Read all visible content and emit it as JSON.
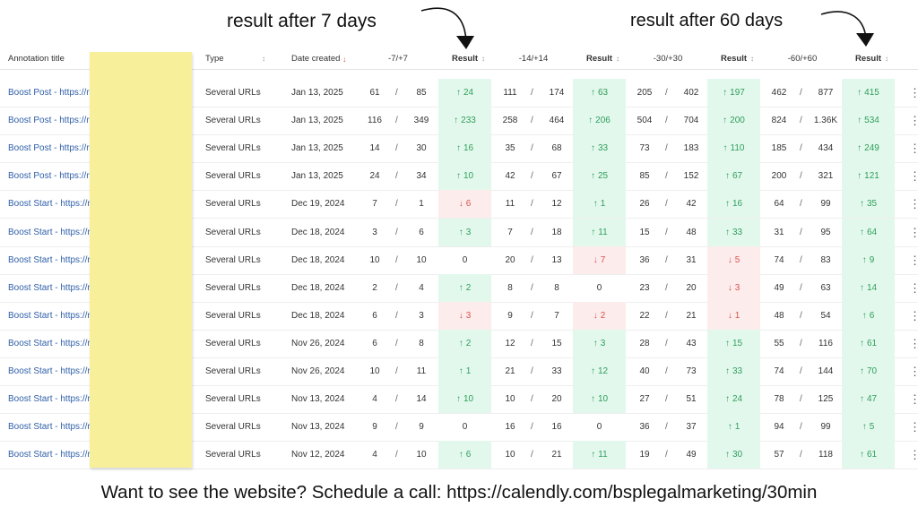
{
  "annotations": [
    "result after 7 days",
    "result after 60 days"
  ],
  "header": [
    "Annotation title",
    "Type",
    "Date created",
    "-7/+7",
    "Result",
    "-14/+14",
    "Result",
    "-30/+30",
    "Result",
    "-60/+60",
    "Result"
  ],
  "rows": [
    {
      "title": "Boost Post - https://r",
      "type": "Several URLs",
      "date": "Jan 13, 2025",
      "cells": [
        [
          61,
          85,
          "up",
          24
        ],
        [
          111,
          174,
          "up",
          63
        ],
        [
          205,
          402,
          "up",
          197
        ],
        [
          462,
          877,
          "up",
          415
        ]
      ]
    },
    {
      "title": "Boost Post - https://r",
      "type": "Several URLs",
      "date": "Jan 13, 2025",
      "cells": [
        [
          116,
          349,
          "up",
          233
        ],
        [
          258,
          464,
          "up",
          206
        ],
        [
          504,
          704,
          "up",
          200
        ],
        [
          824,
          "1.36K",
          "up",
          534
        ]
      ]
    },
    {
      "title": "Boost Post - https://r",
      "type": "Several URLs",
      "date": "Jan 13, 2025",
      "cells": [
        [
          14,
          30,
          "up",
          16
        ],
        [
          35,
          68,
          "up",
          33
        ],
        [
          73,
          183,
          "up",
          110
        ],
        [
          185,
          434,
          "up",
          249
        ]
      ]
    },
    {
      "title": "Boost Post - https://r",
      "type": "Several URLs",
      "date": "Jan 13, 2025",
      "cells": [
        [
          24,
          34,
          "up",
          10
        ],
        [
          42,
          67,
          "up",
          25
        ],
        [
          85,
          152,
          "up",
          67
        ],
        [
          200,
          321,
          "up",
          121
        ]
      ]
    },
    {
      "title": "Boost Start - https://r",
      "type": "Several URLs",
      "date": "Dec 19, 2024",
      "cells": [
        [
          7,
          1,
          "down",
          6
        ],
        [
          11,
          12,
          "up",
          1
        ],
        [
          26,
          42,
          "up",
          16
        ],
        [
          64,
          99,
          "up",
          35
        ]
      ]
    },
    {
      "title": "Boost Start - https://r",
      "type": "Several URLs",
      "date": "Dec 18, 2024",
      "cells": [
        [
          3,
          6,
          "up",
          3
        ],
        [
          7,
          18,
          "up",
          11
        ],
        [
          15,
          48,
          "up",
          33
        ],
        [
          31,
          95,
          "up",
          64
        ]
      ]
    },
    {
      "title": "Boost Start - https://r",
      "type": "Several URLs",
      "date": "Dec 18, 2024",
      "cells": [
        [
          10,
          10,
          "none",
          0
        ],
        [
          20,
          13,
          "down",
          7
        ],
        [
          36,
          31,
          "down",
          5
        ],
        [
          74,
          83,
          "up",
          9
        ]
      ]
    },
    {
      "title": "Boost Start - https://r",
      "type": "Several URLs",
      "date": "Dec 18, 2024",
      "cells": [
        [
          2,
          4,
          "up",
          2
        ],
        [
          8,
          8,
          "none",
          0
        ],
        [
          23,
          20,
          "down",
          3
        ],
        [
          49,
          63,
          "up",
          14
        ]
      ]
    },
    {
      "title": "Boost Start - https://r",
      "type": "Several URLs",
      "date": "Dec 18, 2024",
      "cells": [
        [
          6,
          3,
          "down",
          3
        ],
        [
          9,
          7,
          "down",
          2
        ],
        [
          22,
          21,
          "down",
          1
        ],
        [
          48,
          54,
          "up",
          6
        ]
      ]
    },
    {
      "title": "Boost Start - https://r",
      "type": "Several URLs",
      "date": "Nov 26, 2024",
      "cells": [
        [
          6,
          8,
          "up",
          2
        ],
        [
          12,
          15,
          "up",
          3
        ],
        [
          28,
          43,
          "up",
          15
        ],
        [
          55,
          116,
          "up",
          61
        ]
      ]
    },
    {
      "title": "Boost Start - https://r",
      "type": "Several URLs",
      "date": "Nov 26, 2024",
      "cells": [
        [
          10,
          11,
          "up",
          1
        ],
        [
          21,
          33,
          "up",
          12
        ],
        [
          40,
          73,
          "up",
          33
        ],
        [
          74,
          144,
          "up",
          70
        ]
      ]
    },
    {
      "title": "Boost Start - https://rd",
      "type": "Several URLs",
      "date": "Nov 13, 2024",
      "cells": [
        [
          4,
          14,
          "up",
          10
        ],
        [
          10,
          20,
          "up",
          10
        ],
        [
          27,
          51,
          "up",
          24
        ],
        [
          78,
          125,
          "up",
          47
        ]
      ]
    },
    {
      "title": "Boost Start - https://rd",
      "type": "Several URLs",
      "date": "Nov 13, 2024",
      "cells": [
        [
          9,
          9,
          "none",
          0
        ],
        [
          16,
          16,
          "none",
          0
        ],
        [
          36,
          37,
          "up",
          1
        ],
        [
          94,
          99,
          "up",
          5
        ]
      ]
    },
    {
      "title": "Boost Start - https://rd",
      "type": "Several URLs",
      "date": "Nov 12, 2024",
      "cells": [
        [
          4,
          10,
          "up",
          6
        ],
        [
          10,
          21,
          "up",
          11
        ],
        [
          19,
          49,
          "up",
          30
        ],
        [
          57,
          118,
          "up",
          61
        ]
      ]
    }
  ],
  "footer": "Want to see the website? Schedule a call: https://calendly.com/bsplegalmarketing/30min"
}
